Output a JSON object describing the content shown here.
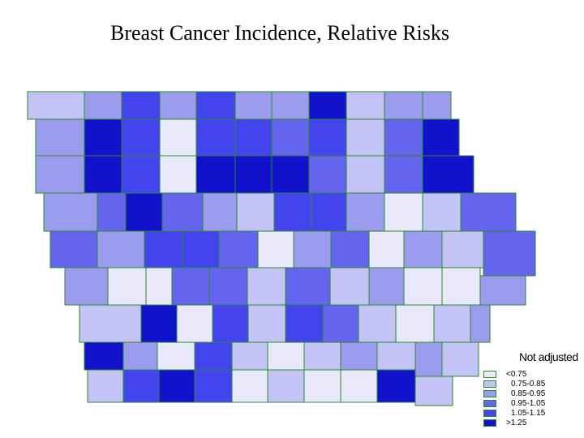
{
  "title": "Breast Cancer Incidence, Relative Risks",
  "legend": {
    "title": "Not adjusted",
    "items": [
      {
        "label": "<0.75",
        "color": "#e9e9fb"
      },
      {
        "label": "0.75-0.85",
        "color": "#c3c3f5"
      },
      {
        "label": "0.85-0.95",
        "color": "#9c9cef"
      },
      {
        "label": "0.95-1.05",
        "color": "#6464ee"
      },
      {
        "label": "1.05-1.15",
        "color": "#4444ee"
      },
      {
        "label": ">1.25",
        "color": "#1212cc"
      }
    ]
  },
  "colors": {
    "border": "#2a8a2a",
    "lt075": "#e9e9fb",
    "c075_085": "#c3c3f5",
    "c085_095": "#9c9cef",
    "c095_105": "#6464ee",
    "c105_115": "#4444ee",
    "gt125": "#1212cc"
  }
}
